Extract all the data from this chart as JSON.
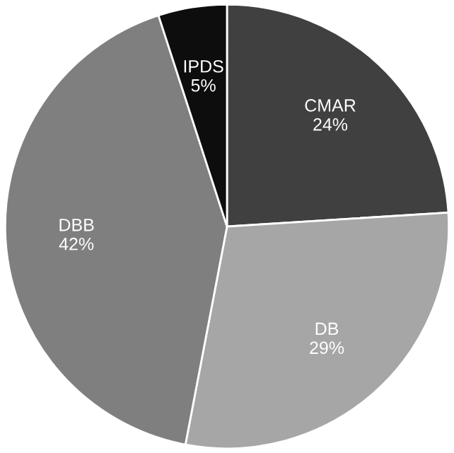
{
  "chart_data": {
    "type": "pie",
    "categories": [
      "CMAR",
      "DB",
      "DBB",
      "IPDS"
    ],
    "values": [
      24,
      29,
      42,
      5
    ],
    "value_labels": [
      "24%",
      "29%",
      "42%",
      "5%"
    ],
    "colors": [
      "#404040",
      "#a6a6a6",
      "#7f7f7f",
      "#0d0d0d"
    ],
    "legend": false
  }
}
